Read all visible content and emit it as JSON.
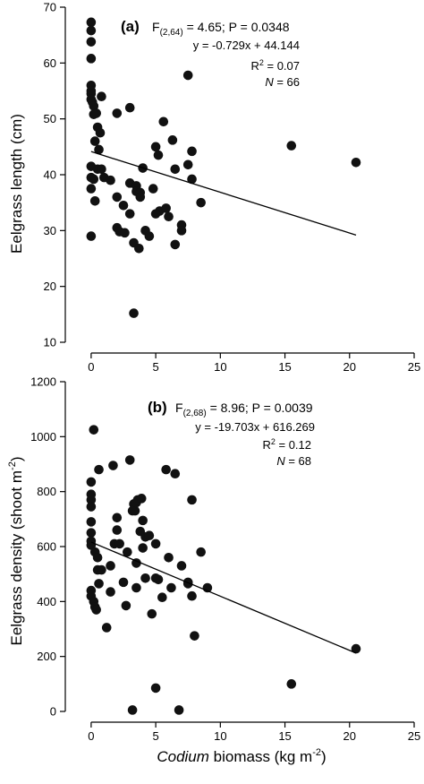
{
  "chart_data": [
    {
      "type": "scatter",
      "panel_label": "(a)",
      "ylabel": "Eelgrass length (cm)",
      "xlim": [
        -2,
        25
      ],
      "ylim": [
        10,
        70
      ],
      "yticks": [
        "10",
        "20",
        "30",
        "40",
        "50",
        "60",
        "70"
      ],
      "xticks": [
        "0",
        "5",
        "10",
        "15",
        "20",
        "25"
      ],
      "annotations": {
        "stat_pre": "F",
        "stat_sub": "(2,64)",
        "stat_post": " = 4.65; P = 0.0348",
        "equation": "y = -0.729x + 44.144",
        "r2_pre": "R",
        "r2_sup": "2",
        "r2_post": " = 0.07",
        "n_label": "N",
        "n_value": " = 66"
      },
      "fit": {
        "slope": -0.729,
        "intercept": 44.144,
        "x_range": [
          0,
          20.5
        ]
      },
      "points": [
        [
          0,
          67.3
        ],
        [
          0,
          65.8
        ],
        [
          0,
          63.8
        ],
        [
          0,
          60.8
        ],
        [
          0,
          56
        ],
        [
          0,
          55
        ],
        [
          0,
          54.5
        ],
        [
          0,
          53.5
        ],
        [
          0.1,
          53
        ],
        [
          0.2,
          52.3
        ],
        [
          0.4,
          51
        ],
        [
          0.2,
          50.8
        ],
        [
          0.5,
          48.5
        ],
        [
          0.7,
          47.5
        ],
        [
          0.3,
          46
        ],
        [
          0.6,
          44.5
        ],
        [
          0.8,
          54
        ],
        [
          0,
          41.5
        ],
        [
          0.5,
          41
        ],
        [
          0.8,
          41
        ],
        [
          0,
          39.5
        ],
        [
          0.2,
          39.2
        ],
        [
          0,
          37.5
        ],
        [
          0.3,
          35.3
        ],
        [
          0,
          29
        ],
        [
          1,
          39.5
        ],
        [
          1.5,
          39
        ],
        [
          2,
          51
        ],
        [
          2,
          36
        ],
        [
          2.5,
          34.5
        ],
        [
          3,
          52
        ],
        [
          3,
          33
        ],
        [
          2,
          30.5
        ],
        [
          2.2,
          29.8
        ],
        [
          3.3,
          27.8
        ],
        [
          3,
          38.5
        ],
        [
          3.5,
          38
        ],
        [
          3.5,
          37
        ],
        [
          4,
          41.2
        ],
        [
          3.8,
          36.8
        ],
        [
          3.8,
          36
        ],
        [
          4.2,
          30
        ],
        [
          4.5,
          29
        ],
        [
          3.7,
          26.8
        ],
        [
          4.8,
          37.5
        ],
        [
          5,
          45
        ],
        [
          5.2,
          43.5
        ],
        [
          5.3,
          33.5
        ],
        [
          5,
          33
        ],
        [
          5.6,
          49.5
        ],
        [
          5.8,
          34
        ],
        [
          6,
          32.5
        ],
        [
          6.3,
          46.2
        ],
        [
          6.5,
          41
        ],
        [
          6.5,
          27.5
        ],
        [
          7,
          31
        ],
        [
          7,
          30
        ],
        [
          7.5,
          57.8
        ],
        [
          7.8,
          44.2
        ],
        [
          7.5,
          41.8
        ],
        [
          7.8,
          39.2
        ],
        [
          8.5,
          35
        ],
        [
          3.3,
          15.2
        ],
        [
          15.5,
          45.2
        ],
        [
          20.5,
          42.2
        ],
        [
          2.6,
          29.6
        ]
      ]
    },
    {
      "type": "scatter",
      "panel_label": "(b)",
      "ylabel": "Eelgrass density (shoot m",
      "ylabel_sup": "-2",
      "ylabel_end": ")",
      "xlabel_italic": "Codium",
      "xlabel": " biomass (kg m",
      "xlabel_sup": "-2",
      "xlabel_end": ")",
      "xlim": [
        -2,
        25
      ],
      "ylim": [
        0,
        1200
      ],
      "yticks": [
        "0",
        "200",
        "400",
        "600",
        "800",
        "1000",
        "1200"
      ],
      "xticks": [
        "0",
        "5",
        "10",
        "15",
        "20",
        "25"
      ],
      "annotations": {
        "stat_pre": "F",
        "stat_sub": "(2,68)",
        "stat_post": " = 8.96; P = 0.0039",
        "equation": "y = -19.703x + 616.269",
        "r2_pre": "R",
        "r2_sup": "2",
        "r2_post": " = 0.12",
        "n_label": "N",
        "n_value": " = 68"
      },
      "fit": {
        "slope": -19.703,
        "intercept": 616.269,
        "x_range": [
          0,
          20.5
        ]
      },
      "points": [
        [
          0.2,
          1025
        ],
        [
          0.6,
          880
        ],
        [
          0,
          835
        ],
        [
          0,
          790
        ],
        [
          0,
          770
        ],
        [
          0,
          745
        ],
        [
          0,
          690
        ],
        [
          0,
          650
        ],
        [
          0,
          620
        ],
        [
          0,
          605
        ],
        [
          0.3,
          580
        ],
        [
          0.5,
          560
        ],
        [
          0.5,
          515
        ],
        [
          0.8,
          515
        ],
        [
          0,
          440
        ],
        [
          0,
          420
        ],
        [
          0.2,
          400
        ],
        [
          0.3,
          380
        ],
        [
          0.4,
          370
        ],
        [
          0.6,
          465
        ],
        [
          1.2,
          305
        ],
        [
          1.7,
          895
        ],
        [
          1.5,
          530
        ],
        [
          1.5,
          435
        ],
        [
          1.8,
          610
        ],
        [
          2,
          705
        ],
        [
          2.2,
          610
        ],
        [
          2,
          660
        ],
        [
          2.5,
          470
        ],
        [
          2.7,
          385
        ],
        [
          3,
          915
        ],
        [
          3.3,
          755
        ],
        [
          3.4,
          730
        ],
        [
          3.5,
          760
        ],
        [
          3.6,
          770
        ],
        [
          3.9,
          775
        ],
        [
          4,
          695
        ],
        [
          3.8,
          655
        ],
        [
          4.2,
          635
        ],
        [
          4.5,
          640
        ],
        [
          4,
          595
        ],
        [
          5,
          610
        ],
        [
          3.5,
          540
        ],
        [
          3.5,
          450
        ],
        [
          4.7,
          355
        ],
        [
          4.2,
          485
        ],
        [
          5,
          485
        ],
        [
          5.5,
          415
        ],
        [
          5.8,
          880
        ],
        [
          6,
          560
        ],
        [
          6.5,
          865
        ],
        [
          6.2,
          450
        ],
        [
          7,
          530
        ],
        [
          7.5,
          470
        ],
        [
          7.8,
          770
        ],
        [
          7.8,
          420
        ],
        [
          8,
          275
        ],
        [
          8.5,
          580
        ],
        [
          9,
          450
        ],
        [
          7.5,
          465
        ],
        [
          5,
          85
        ],
        [
          3.2,
          5
        ],
        [
          6.8,
          5
        ],
        [
          15.5,
          100
        ],
        [
          20.5,
          228
        ],
        [
          3.2,
          730
        ],
        [
          5.2,
          480
        ],
        [
          2.8,
          580
        ]
      ]
    }
  ]
}
